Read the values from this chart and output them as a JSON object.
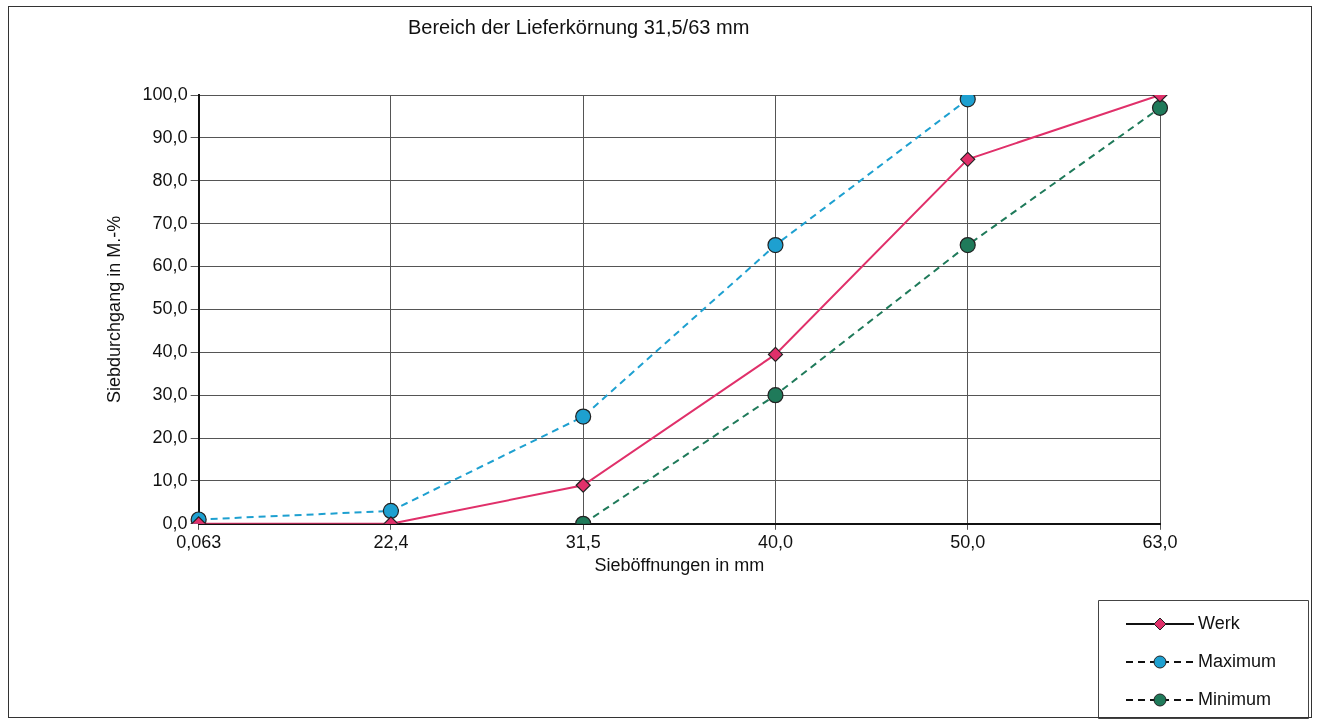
{
  "chart_data": {
    "type": "line",
    "title": "Bereich der Lieferkörnung 31,5/63 mm",
    "xlabel": "Sieböffnungen in mm",
    "ylabel": "Siebdurchgang in M.-%",
    "categories": [
      "0,063",
      "22,4",
      "31,5",
      "40,0",
      "50,0",
      "63,0"
    ],
    "series": [
      {
        "name": "Werk",
        "color": "#e0306a",
        "marker": "diamond",
        "line_style": "solid",
        "values": [
          0,
          0,
          9,
          39.5,
          85,
          100
        ]
      },
      {
        "name": "Maximum",
        "color": "#1ea0d0",
        "marker": "circle",
        "line_style": "dashed",
        "values": [
          1,
          3,
          25,
          65,
          99,
          null
        ]
      },
      {
        "name": "Minimum",
        "color": "#1f7a5a",
        "marker": "circle",
        "line_style": "dashed",
        "values": [
          null,
          null,
          0,
          30,
          65,
          97
        ]
      }
    ],
    "ylim": [
      0,
      100
    ],
    "yticks": [
      {
        "value": 0,
        "label": "0,0"
      },
      {
        "value": 10,
        "label": "10,0"
      },
      {
        "value": 20,
        "label": "20,0"
      },
      {
        "value": 30,
        "label": "30,0"
      },
      {
        "value": 40,
        "label": "40,0"
      },
      {
        "value": 50,
        "label": "50,0"
      },
      {
        "value": 60,
        "label": "60,0"
      },
      {
        "value": 70,
        "label": "70,0"
      },
      {
        "value": 80,
        "label": "80,0"
      },
      {
        "value": 90,
        "label": "90,0"
      },
      {
        "value": 100,
        "label": "100,0"
      }
    ],
    "grid": true,
    "legend": "bottom right"
  }
}
